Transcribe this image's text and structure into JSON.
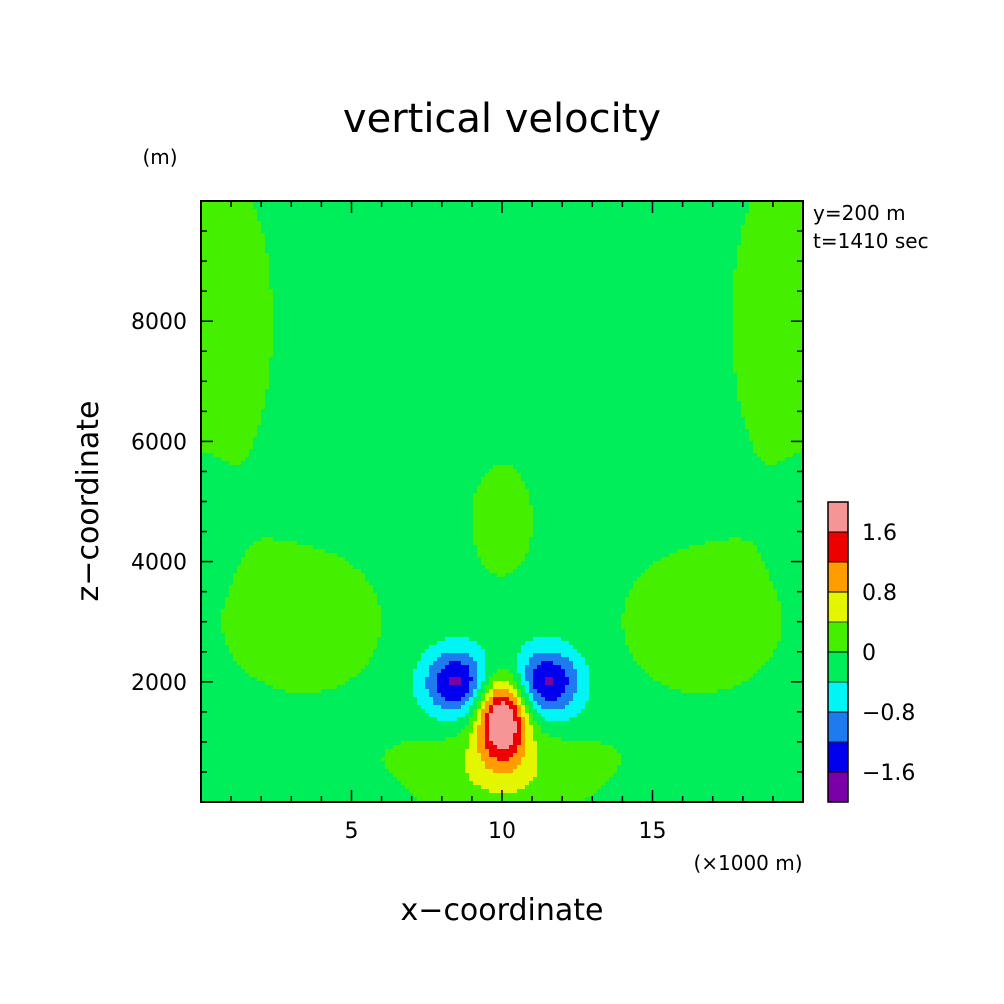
{
  "chart_data": {
    "type": "heatmap",
    "title": "vertical velocity",
    "xlabel": "x−coordinate",
    "ylabel": "z−coordinate",
    "x_unit": "(×1000 m)",
    "y_unit": "(m)",
    "info": [
      "y=200 m",
      "t=1410 sec"
    ],
    "xlim": [
      0,
      20
    ],
    "ylim": [
      0,
      10000
    ],
    "x_ticks": [
      5,
      10,
      15
    ],
    "x_tick_labels": [
      "5",
      "10",
      "15"
    ],
    "y_ticks": [
      2000,
      4000,
      6000,
      8000
    ],
    "y_tick_labels": [
      "2000",
      "4000",
      "6000",
      "8000"
    ],
    "grid": false,
    "colorbar": {
      "levels": [
        {
          "min": -2.0,
          "max": -1.6,
          "color": "#7a00a8"
        },
        {
          "min": -1.6,
          "max": -1.2,
          "color": "#0000ee"
        },
        {
          "min": -1.2,
          "max": -0.8,
          "color": "#1e7bef"
        },
        {
          "min": -0.8,
          "max": -0.4,
          "color": "#00f5f5"
        },
        {
          "min": -0.4,
          "max": 0.0,
          "color": "#00ee5a"
        },
        {
          "min": 0.0,
          "max": 0.4,
          "color": "#44f000"
        },
        {
          "min": 0.4,
          "max": 0.8,
          "color": "#e4f500"
        },
        {
          "min": 0.8,
          "max": 1.2,
          "color": "#ff9c00"
        },
        {
          "min": 1.2,
          "max": 1.6,
          "color": "#ee0000"
        },
        {
          "min": 1.6,
          "max": 2.0,
          "color": "#f59595"
        }
      ],
      "tick_values": [
        1.6,
        0.8,
        0,
        -0.8,
        -1.6
      ],
      "tick_labels": [
        "1.6",
        "0.8",
        "0",
        "−0.8",
        "−1.6"
      ]
    },
    "field": {
      "background": -0.2,
      "features": [
        {
          "type": "gaussian",
          "x": 10,
          "z": 1400,
          "ax": 0.85,
          "az": 700,
          "amp": 2.4
        },
        {
          "type": "gaussian",
          "x": 10,
          "z": 300,
          "ax": 3.0,
          "az": 700,
          "amp": 0.5
        },
        {
          "type": "gaussian",
          "x": 8.5,
          "z": 2000,
          "ax": 1.1,
          "az": 550,
          "amp": -1.5
        },
        {
          "type": "gaussian",
          "x": 11.5,
          "z": 2000,
          "ax": 1.1,
          "az": 550,
          "amp": -1.5
        },
        {
          "type": "gaussian",
          "x": 3.5,
          "z": 3000,
          "ax": 3.0,
          "az": 1400,
          "amp": 0.4
        },
        {
          "type": "gaussian",
          "x": 16.5,
          "z": 3000,
          "ax": 3.0,
          "az": 1400,
          "amp": 0.4
        },
        {
          "type": "gaussian",
          "x": 10,
          "z": 4700,
          "ax": 1.2,
          "az": 1100,
          "amp": 0.4
        },
        {
          "type": "gaussian",
          "x": 0.5,
          "z": 8000,
          "ax": 2.5,
          "az": 3500,
          "amp": 0.35
        },
        {
          "type": "gaussian",
          "x": 19.5,
          "z": 8000,
          "ax": 2.5,
          "az": 3500,
          "amp": 0.35
        },
        {
          "type": "gaussian",
          "x": 0,
          "z": 4500,
          "ax": 0.9,
          "az": 900,
          "amp": -0.3
        },
        {
          "type": "gaussian",
          "x": 20,
          "z": 4500,
          "ax": 0.9,
          "az": 900,
          "amp": -0.3
        },
        {
          "type": "gaussian",
          "x": 10,
          "z": 800,
          "ax": 6.0,
          "az": 500,
          "amp": 0.2
        }
      ]
    }
  }
}
